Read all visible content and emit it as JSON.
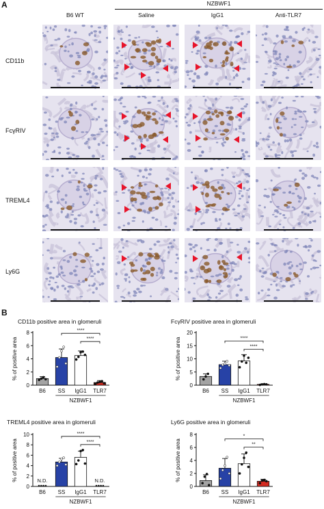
{
  "panel_a": {
    "letter": "A",
    "group_header": "NZBWF1",
    "columns": [
      "B6 WT",
      "Saline",
      "IgG1",
      "Anti-TLR7"
    ],
    "rows": [
      "CD11b",
      "FcγRIV",
      "TREML4",
      "Ly6G"
    ],
    "arrow_counts": [
      [
        0,
        5,
        4,
        0
      ],
      [
        0,
        5,
        4,
        0
      ],
      [
        0,
        3,
        3,
        0
      ],
      [
        0,
        1,
        2,
        0
      ]
    ],
    "colors": {
      "hematoxylin": "#7f86b8",
      "dab": "#8a5a2b",
      "arrow": "#e8142a",
      "background": "#e6e3ef"
    }
  },
  "panel_b": {
    "letter": "B"
  },
  "chart_data": [
    {
      "type": "bar",
      "title": "CD11b positive area in glomeruli",
      "ylabel": "% of positive area",
      "xlabel": "NZBWF1",
      "categories": [
        "B6",
        "SS",
        "IgG1",
        "TLR7"
      ],
      "values": [
        1.0,
        4.2,
        4.5,
        0.4
      ],
      "errors": [
        0.3,
        1.3,
        0.7,
        0.3
      ],
      "points": [
        [
          0.8,
          1.0,
          1.2,
          0.9
        ],
        [
          2.8,
          4.2,
          5.2,
          5.8,
          3.3
        ],
        [
          3.9,
          4.3,
          5.0,
          5.1,
          4.6
        ],
        [
          0.2,
          0.4,
          0.5,
          0.6,
          0.3
        ]
      ],
      "ylim": [
        0,
        8
      ],
      "yticks": [
        0,
        2,
        4,
        6,
        8
      ],
      "bar_colors": [
        "#a3a3a3",
        "#2742a6",
        "#ffffff",
        "#d42a20"
      ],
      "significance": [
        {
          "from": "SS",
          "to": "TLR7",
          "label": "****"
        },
        {
          "from": "IgG1",
          "to": "TLR7",
          "label": "****"
        }
      ]
    },
    {
      "type": "bar",
      "title": "FcγRIV positive area in glomeruli",
      "ylabel": "% of positive area",
      "xlabel": "NZBWF1",
      "categories": [
        "B6",
        "SS",
        "IgG1",
        "TLR7"
      ],
      "values": [
        3.3,
        7.8,
        9.2,
        0.3
      ],
      "errors": [
        1.0,
        1.3,
        2.4,
        0.2
      ],
      "points": [
        [
          2.2,
          3.3,
          4.3
        ],
        [
          6.5,
          7.7,
          8.1,
          9.1,
          7.5
        ],
        [
          6.8,
          9.0,
          11.2,
          8.5,
          10.4
        ],
        [
          0.1,
          0.3,
          0.4,
          0.3
        ]
      ],
      "ylim": [
        0,
        20
      ],
      "yticks": [
        0,
        5,
        10,
        15,
        20
      ],
      "bar_colors": [
        "#a3a3a3",
        "#2742a6",
        "#ffffff",
        "#d42a20"
      ],
      "significance": [
        {
          "from": "SS",
          "to": "TLR7",
          "label": "****"
        },
        {
          "from": "IgG1",
          "to": "TLR7",
          "label": "****"
        }
      ]
    },
    {
      "type": "bar",
      "title": "TREML4 positive area in glomeruli",
      "ylabel": "% of positive area",
      "xlabel": "NZBWF1",
      "categories": [
        "B6",
        "SS",
        "IgG1",
        "TLR7"
      ],
      "values": [
        0,
        4.7,
        5.6,
        0
      ],
      "errors": [
        0,
        0.7,
        1.2,
        0
      ],
      "points": [
        [],
        [
          4.0,
          4.7,
          5.3,
          5.5,
          4.2
        ],
        [
          4.3,
          5.0,
          6.8,
          7.0,
          4.4
        ],
        []
      ],
      "nd": [
        "N.D.",
        "",
        "",
        "N.D."
      ],
      "ylim": [
        0,
        10
      ],
      "yticks": [
        0,
        2,
        4,
        6,
        8,
        10
      ],
      "bar_colors": [
        "#a3a3a3",
        "#2742a6",
        "#ffffff",
        "#d42a20"
      ],
      "significance": [
        {
          "from": "SS",
          "to": "TLR7",
          "label": "****"
        },
        {
          "from": "IgG1",
          "to": "TLR7",
          "label": "****"
        }
      ]
    },
    {
      "type": "bar",
      "title": "Ly6G positive area in glomeruli",
      "ylabel": "% of positive area",
      "xlabel": "NZBWF1",
      "categories": [
        "B6",
        "SS",
        "IgG1",
        "TLR7"
      ],
      "values": [
        0.9,
        2.8,
        3.5,
        0.8
      ],
      "errors": [
        0.9,
        1.5,
        1.5,
        0.3
      ],
      "points": [
        [
          0.5,
          1.5,
          1.9,
          0.2
        ],
        [
          1.2,
          2.5,
          3.2,
          4.5,
          2.0
        ],
        [
          2.0,
          3.4,
          4.4,
          5.2,
          3.0
        ],
        [
          0.5,
          0.9,
          1.0,
          0.8
        ]
      ],
      "ylim": [
        0,
        8
      ],
      "yticks": [
        0,
        2,
        4,
        6,
        8
      ],
      "bar_colors": [
        "#a3a3a3",
        "#2742a6",
        "#ffffff",
        "#d42a20"
      ],
      "significance": [
        {
          "from": "SS",
          "to": "TLR7",
          "label": "*"
        },
        {
          "from": "IgG1",
          "to": "TLR7",
          "label": "**"
        }
      ]
    }
  ]
}
